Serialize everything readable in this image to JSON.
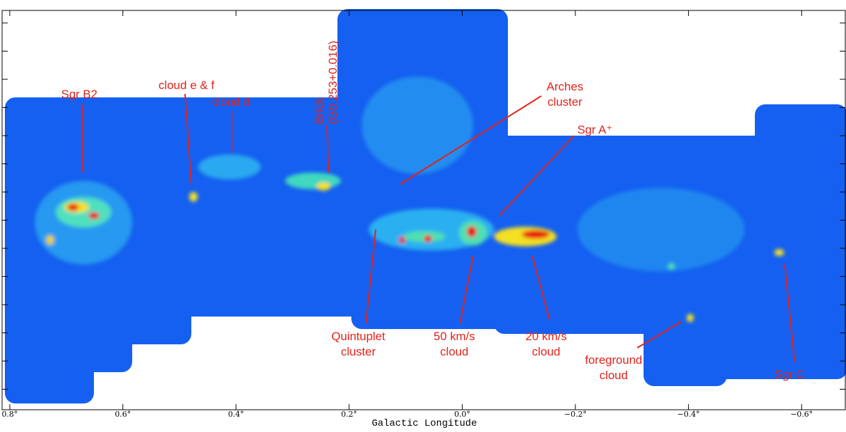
{
  "x_axis": {
    "label": "Galactic Longitude",
    "ticks": [
      "0.8°",
      "0.6°",
      "0.4°",
      "0.2°",
      "0.0°",
      "−0.2°",
      "−0.4°",
      "−0.6°"
    ]
  },
  "annotations": [
    {
      "lines": [
        "Sgr B2"
      ]
    },
    {
      "lines": [
        "cloud e & f"
      ]
    },
    {
      "lines": [
        "cloud d"
      ]
    },
    {
      "lines": [
        "Brick",
        "(G0.253+0.016)"
      ]
    },
    {
      "lines": [
        "Arches",
        "cluster"
      ]
    },
    {
      "lines": [
        "Sgr A⁺"
      ]
    },
    {
      "lines": [
        "Quintuplet",
        "cluster"
      ]
    },
    {
      "lines": [
        "50 km/s",
        "cloud"
      ]
    },
    {
      "lines": [
        "20 km/s",
        "cloud"
      ]
    },
    {
      "lines": [
        "foreground",
        "cloud"
      ]
    },
    {
      "lines": [
        "Sgr C"
      ]
    }
  ]
}
